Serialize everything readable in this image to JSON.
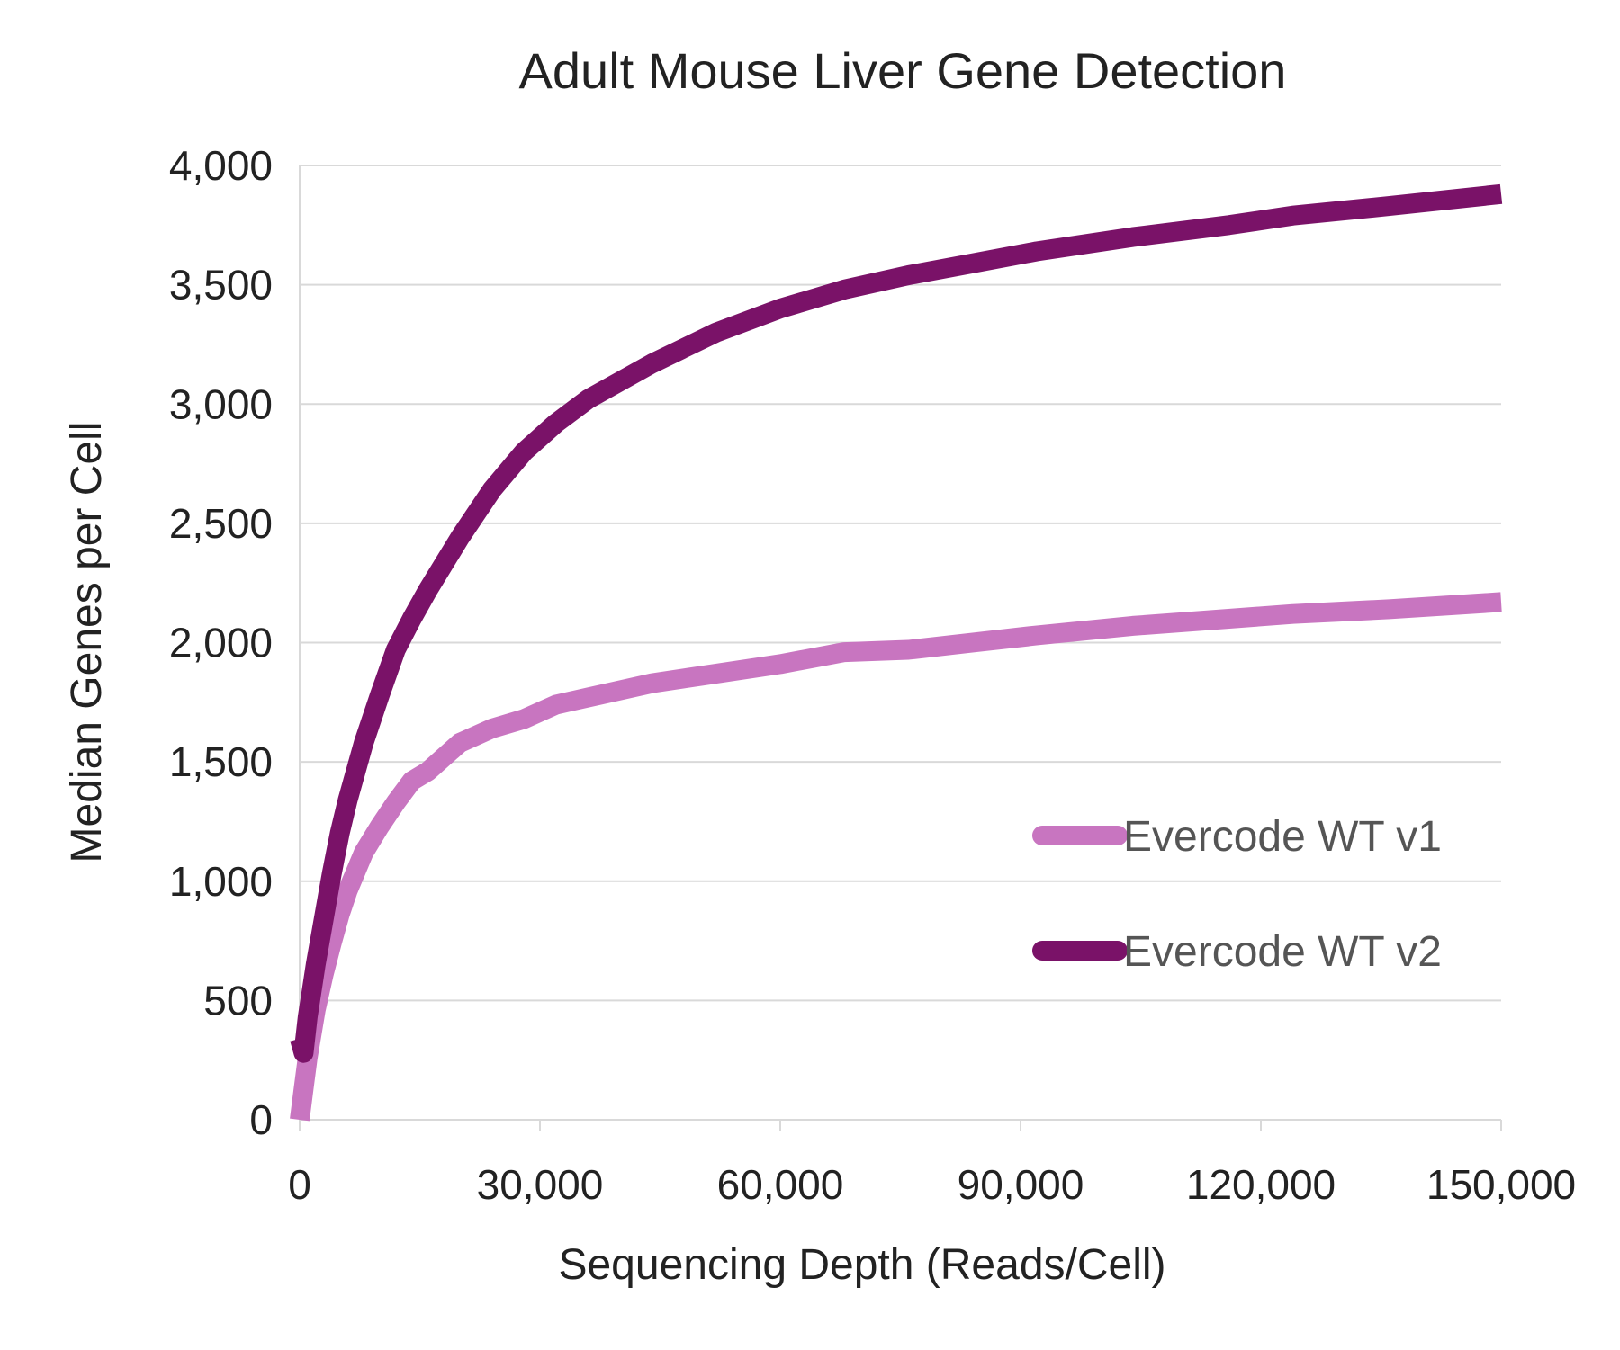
{
  "chart_data": {
    "type": "line",
    "title": "Adult Mouse Liver Gene Detection",
    "xlabel": "Sequencing Depth (Reads/Cell)",
    "ylabel": "Median Genes per Cell",
    "xlim": [
      0,
      150000
    ],
    "ylim": [
      0,
      4000
    ],
    "xticks": [
      0,
      30000,
      60000,
      90000,
      120000,
      150000
    ],
    "xtick_labels": [
      "0",
      "30,000",
      "60,000",
      "90,000",
      "120,000",
      "150,000"
    ],
    "yticks": [
      0,
      500,
      1000,
      1500,
      2000,
      2500,
      3000,
      3500,
      4000
    ],
    "ytick_labels": [
      "0",
      "500",
      "1,000",
      "1,500",
      "2,000",
      "2,500",
      "3,000",
      "3,500",
      "4,000"
    ],
    "grid": "horizontal",
    "legend_position": "bottom-right",
    "series": [
      {
        "name": "Evercode WT v1",
        "color": "#c875c0",
        "x": [
          0,
          500,
          1000,
          2000,
          3000,
          4000,
          5000,
          6000,
          8000,
          10000,
          12000,
          14000,
          16000,
          20000,
          24000,
          28000,
          32000,
          36000,
          44000,
          52000,
          60000,
          68000,
          76000,
          84000,
          92000,
          104000,
          116000,
          124000,
          136000,
          150000
        ],
        "y": [
          0,
          130,
          260,
          460,
          610,
          740,
          860,
          960,
          1120,
          1230,
          1330,
          1420,
          1460,
          1580,
          1640,
          1680,
          1740,
          1770,
          1830,
          1870,
          1910,
          1960,
          1970,
          2000,
          2030,
          2070,
          2100,
          2120,
          2140,
          2170
        ]
      },
      {
        "name": "Evercode WT v2",
        "color": "#7a1268",
        "x": [
          0,
          500,
          1000,
          2000,
          3000,
          4000,
          5000,
          6000,
          8000,
          10000,
          12000,
          14000,
          16000,
          20000,
          24000,
          28000,
          32000,
          36000,
          44000,
          52000,
          60000,
          68000,
          76000,
          84000,
          92000,
          104000,
          116000,
          124000,
          136000,
          150000
        ],
        "y": [
          340,
          280,
          430,
          650,
          840,
          1030,
          1200,
          1340,
          1580,
          1780,
          1970,
          2100,
          2220,
          2440,
          2640,
          2800,
          2920,
          3020,
          3170,
          3300,
          3400,
          3480,
          3540,
          3590,
          3640,
          3700,
          3750,
          3790,
          3830,
          3880
        ]
      }
    ]
  }
}
